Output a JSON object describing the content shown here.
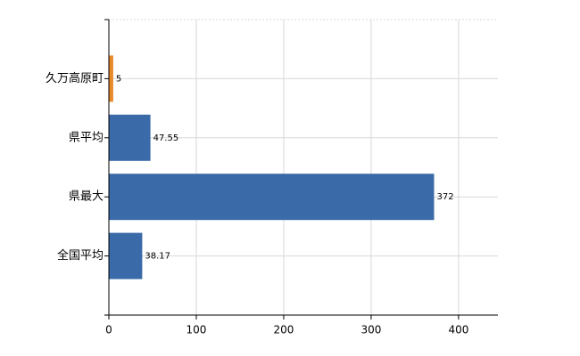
{
  "chart_data": {
    "type": "barh",
    "categories": [
      "久万高原町",
      "県平均",
      "県最大",
      "全国平均"
    ],
    "values": [
      5,
      47.55,
      372,
      38.17
    ],
    "colors": [
      "#e8892a",
      "#3a6aa8",
      "#3a6aa8",
      "#3a6aa8"
    ],
    "xlim": [
      0,
      445
    ],
    "xticks": [
      0,
      100,
      200,
      300,
      400
    ],
    "grid": true
  }
}
